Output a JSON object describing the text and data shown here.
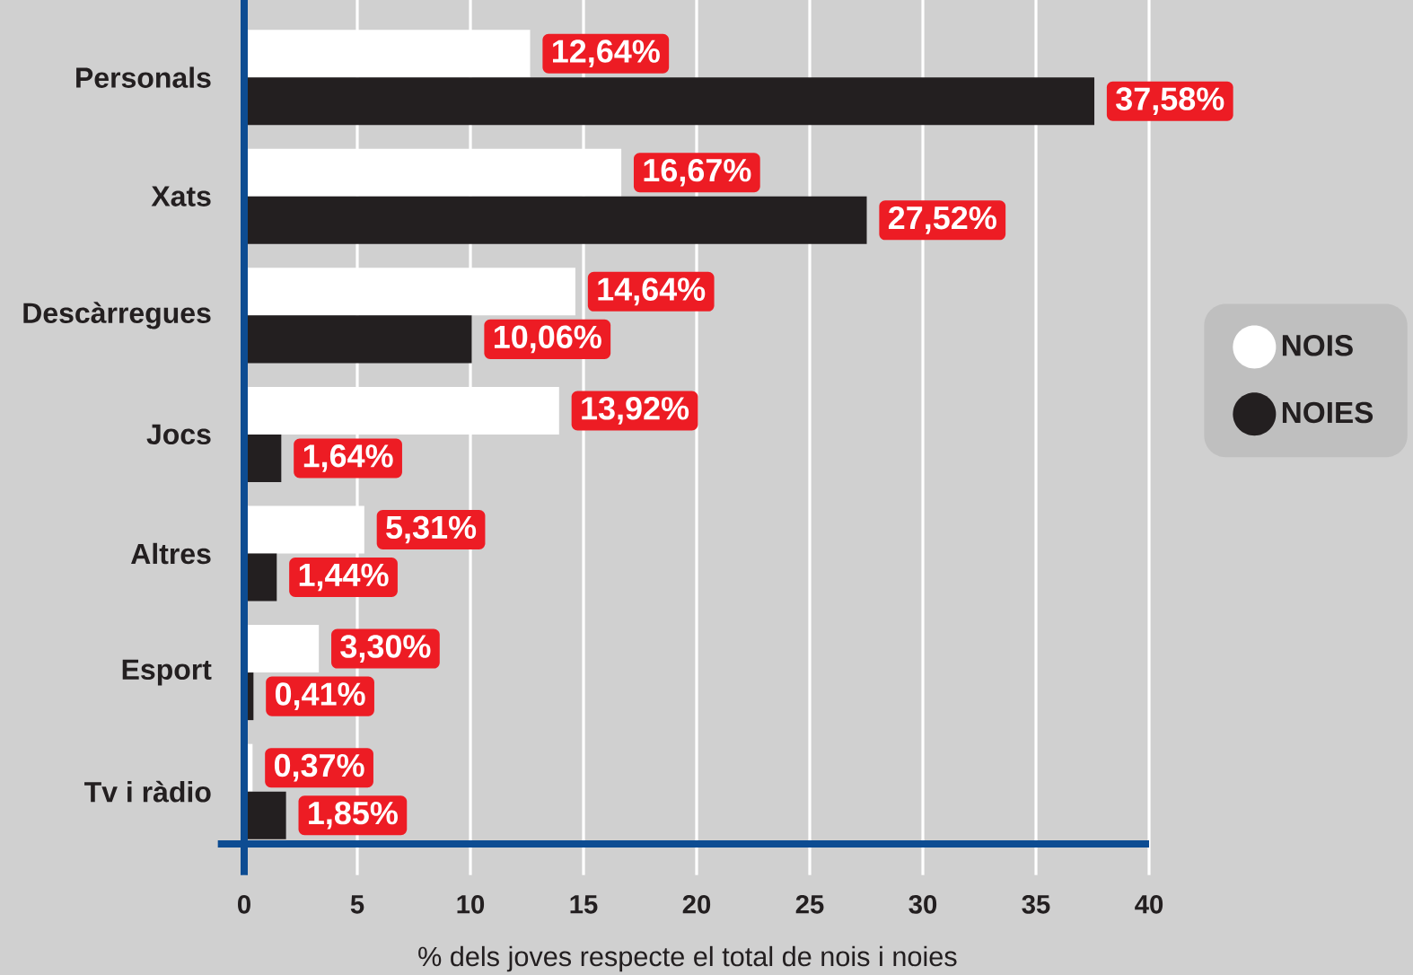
{
  "chart_data": {
    "type": "bar",
    "orientation": "horizontal",
    "categories": [
      "Personals",
      "Xats",
      "Descàrregues",
      "Jocs",
      "Altres",
      "Esport",
      "Tv i ràdio"
    ],
    "series": [
      {
        "name": "NOIS",
        "color": "#ffffff",
        "values": [
          12.64,
          16.67,
          14.64,
          13.92,
          5.31,
          3.3,
          0.37
        ],
        "value_labels": [
          "12,64%",
          "16,67%",
          "14,64%",
          "13,92%",
          "5,31%",
          "3,30%",
          "0,37%"
        ]
      },
      {
        "name": "NOIES",
        "color": "#231f20",
        "values": [
          37.58,
          27.52,
          10.06,
          1.64,
          1.44,
          0.41,
          1.85
        ],
        "value_labels": [
          "37,58%",
          "27,52%",
          "10,06%",
          "1,64%",
          "1,44%",
          "0,41%",
          "1,85%"
        ]
      }
    ],
    "xlabel": "% dels joves respecte el total de nois i noies",
    "xlim": [
      0,
      40
    ],
    "xticks": [
      0,
      5,
      10,
      15,
      20,
      25,
      30,
      35,
      40
    ],
    "grid": "x",
    "legend": "right"
  }
}
